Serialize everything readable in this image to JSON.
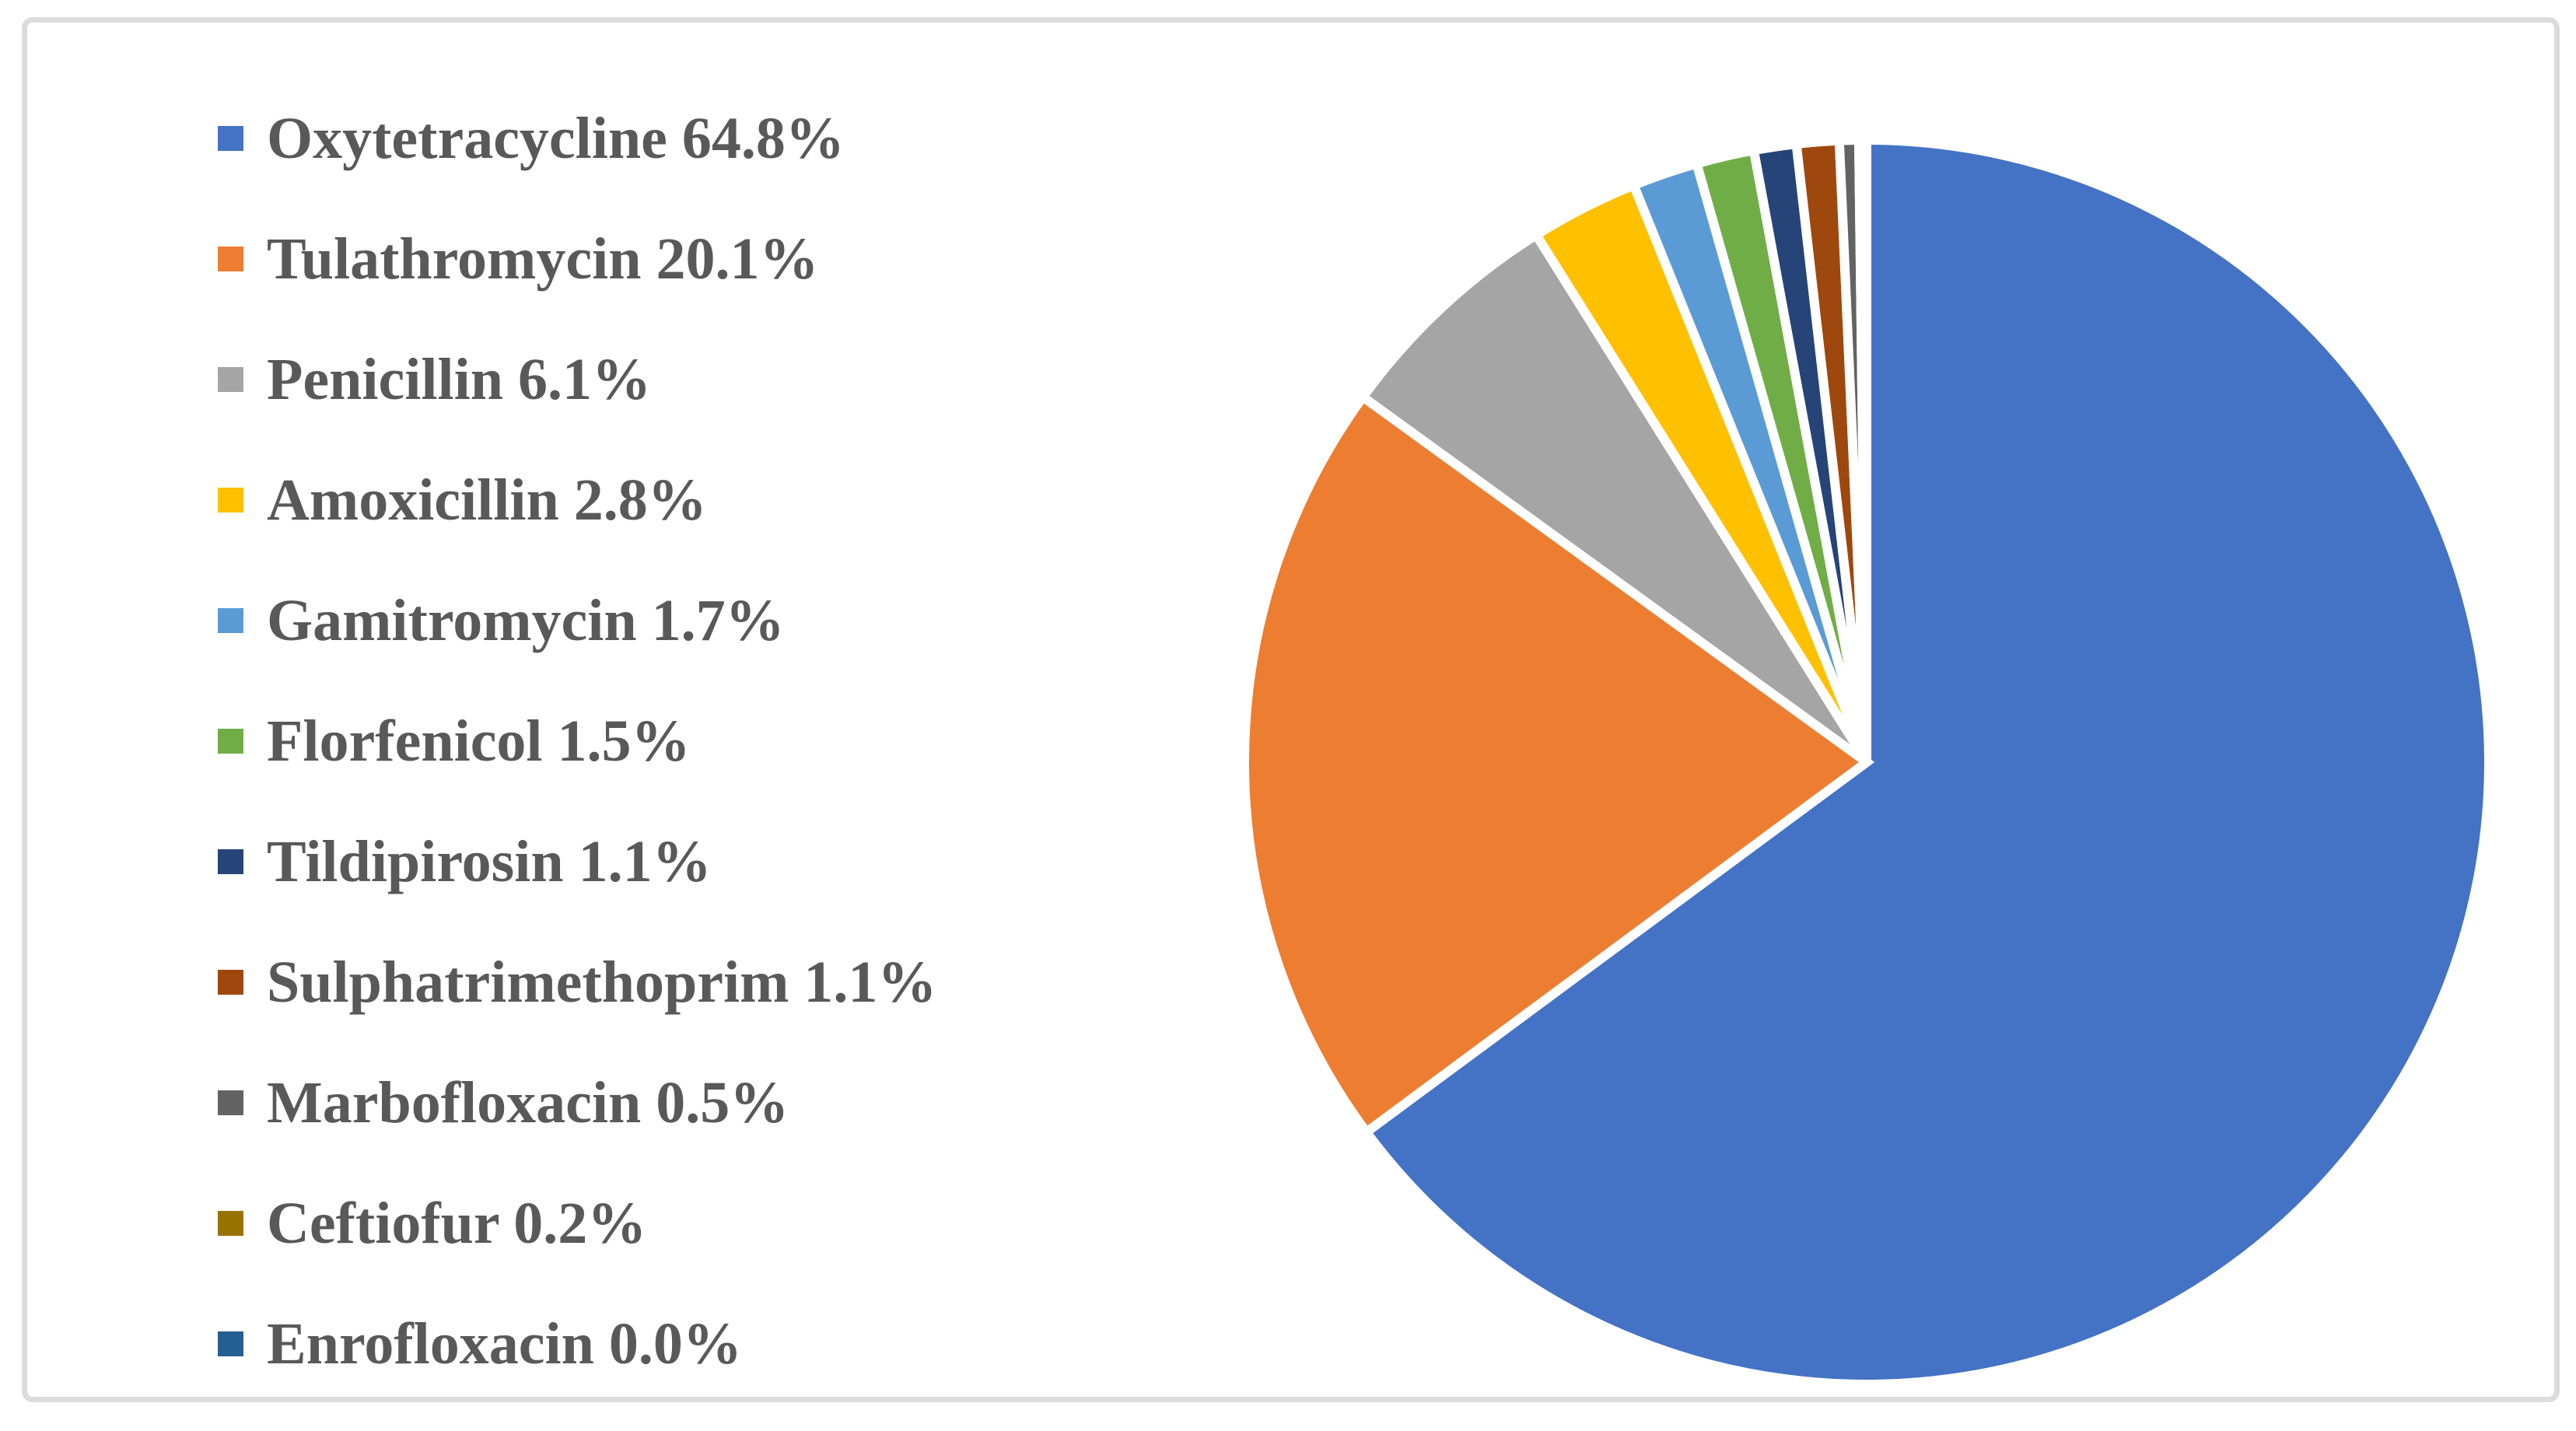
{
  "chart_data": {
    "type": "pie",
    "title": "",
    "unit": "%",
    "start_angle_deg": 0,
    "direction": "clockwise",
    "legend_position": "left",
    "grid": false,
    "background_color": "#FFFFFF",
    "frame_border_color": "#DCDCDC",
    "slice_border_color": "#FFFFFF",
    "slice_border_width_px": 12,
    "legend_text_color": "#595959",
    "categories": [
      "Oxytetracycline",
      "Tulathromycin",
      "Penicillin",
      "Amoxicillin",
      "Gamitromycin",
      "Florfenicol",
      "Tildipirosin",
      "Sulphatrimethoprim",
      "Marbofloxacin",
      "Ceftiofur",
      "Enrofloxacin"
    ],
    "values": [
      64.8,
      20.1,
      6.1,
      2.8,
      1.7,
      1.5,
      1.1,
      1.1,
      0.5,
      0.2,
      0.0
    ],
    "colors": [
      "#4472C4",
      "#ED7D31",
      "#A5A5A5",
      "#FFC000",
      "#5B9BD5",
      "#70AD47",
      "#264478",
      "#9E480E",
      "#636363",
      "#997300",
      "#255E91"
    ],
    "legend_labels": [
      "Oxytetracycline 64.8%",
      "Tulathromycin 20.1%",
      "Penicillin 6.1%",
      "Amoxicillin 2.8%",
      "Gamitromycin 1.7%",
      "Florfenicol 1.5%",
      "Tildipirosin 1.1%",
      "Sulphatrimethoprim 1.1%",
      "Marbofloxacin 0.5%",
      "Ceftiofur 0.2%",
      "Enrofloxacin 0.0%"
    ]
  }
}
